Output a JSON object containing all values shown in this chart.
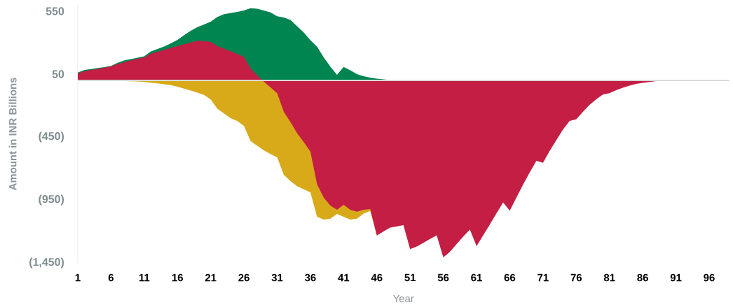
{
  "chart_data": {
    "type": "area",
    "xlabel": "Year",
    "ylabel": "Amount in INR Billions",
    "xlim": [
      1,
      99
    ],
    "ylim": [
      -1450,
      600
    ],
    "xticks": [
      1,
      6,
      11,
      16,
      21,
      26,
      31,
      36,
      41,
      46,
      51,
      56,
      61,
      66,
      71,
      76,
      81,
      86,
      91,
      96
    ],
    "yticks": [
      550,
      50,
      {
        "value": -450,
        "label": "(450)"
      },
      {
        "value": -950,
        "label": "(950)"
      },
      {
        "value": -1450,
        "label": "(1,450)"
      }
    ],
    "ref_lines": [
      {
        "axis": "y",
        "value": 0,
        "color": "#d9d9d9"
      }
    ],
    "series": [
      {
        "color": "#008450",
        "x": [
          1,
          2,
          3,
          4,
          5,
          6,
          7,
          8,
          9,
          10,
          11,
          12,
          13,
          14,
          15,
          16,
          17,
          18,
          19,
          20,
          21,
          22,
          23,
          24,
          25,
          26,
          27,
          28,
          29,
          30,
          31,
          32,
          33,
          34,
          35,
          36,
          37,
          38,
          39,
          40,
          41,
          42,
          43,
          44,
          45,
          46,
          47,
          48
        ],
        "values": [
          63,
          83,
          90,
          98,
          105,
          115,
          140,
          160,
          170,
          180,
          192,
          230,
          250,
          270,
          295,
          322,
          360,
          395,
          424,
          445,
          467,
          504,
          526,
          535,
          544,
          556,
          573,
          569,
          555,
          540,
          510,
          500,
          480,
          431,
          380,
          320,
          268,
          183,
          110,
          44,
          107,
          80,
          50,
          33,
          22,
          14,
          8,
          3
        ]
      },
      {
        "color": "#d8aa19",
        "x": [
          1,
          2,
          3,
          4,
          5,
          6,
          7,
          8,
          9,
          10,
          11,
          12,
          13,
          14,
          15,
          16,
          17,
          18,
          19,
          20,
          21,
          22,
          23,
          24,
          25,
          26,
          27,
          28,
          29,
          30,
          31,
          32,
          33,
          34,
          35,
          36,
          37,
          38,
          39,
          40,
          41,
          42,
          43,
          44,
          45,
          46
        ],
        "values": [
          0,
          -1,
          -1,
          -2,
          -3,
          -3,
          -4,
          -5,
          -7,
          -8,
          -12,
          -18,
          -24,
          -30,
          -37,
          -50,
          -65,
          -80,
          -97,
          -115,
          -152,
          -225,
          -262,
          -300,
          -322,
          -361,
          -482,
          -520,
          -556,
          -585,
          -611,
          -750,
          -800,
          -840,
          -865,
          -889,
          -1083,
          -1105,
          -1098,
          -1061,
          -1083,
          -1106,
          -1098,
          -1058,
          -1037,
          -1232
        ]
      },
      {
        "color": "#c41e45",
        "x": [
          1,
          2,
          3,
          4,
          5,
          6,
          7,
          8,
          9,
          10,
          11,
          12,
          13,
          14,
          15,
          16,
          17,
          18,
          19,
          20,
          21,
          22,
          23,
          24,
          25,
          26,
          27,
          28,
          29,
          30,
          31,
          32,
          33,
          34,
          35,
          36,
          37,
          38,
          39,
          40,
          41,
          42,
          43,
          44,
          45,
          46,
          47,
          48,
          49,
          50,
          51,
          52,
          53,
          54,
          55,
          56,
          57,
          58,
          59,
          60,
          61,
          62,
          63,
          64,
          65,
          66,
          67,
          68,
          69,
          70,
          71,
          72,
          73,
          74,
          75,
          76,
          77,
          78,
          79,
          80,
          81,
          82,
          83,
          84,
          85,
          86,
          87,
          88,
          89,
          90,
          91
        ],
        "values": [
          55,
          73,
          83,
          92,
          102,
          113,
          130,
          145,
          160,
          172,
          183,
          212,
          228,
          243,
          258,
          272,
          288,
          302,
          315,
          312,
          306,
          272,
          252,
          232,
          210,
          187,
          94,
          40,
          -10,
          -55,
          -102,
          -250,
          -330,
          -420,
          -490,
          -565,
          -825,
          -930,
          -995,
          -1028,
          -987,
          -1028,
          -1043,
          -1028,
          -1022,
          -1232,
          -1200,
          -1170,
          -1160,
          -1150,
          -1340,
          -1320,
          -1290,
          -1260,
          -1230,
          -1405,
          -1361,
          -1300,
          -1240,
          -1185,
          -1317,
          -1230,
          -1145,
          -1055,
          -969,
          -1035,
          -930,
          -828,
          -730,
          -639,
          -654,
          -560,
          -475,
          -390,
          -322,
          -308,
          -250,
          -195,
          -150,
          -113,
          -101,
          -78,
          -58,
          -41,
          -28,
          -19,
          -12,
          -6,
          -3,
          -1,
          0
        ]
      }
    ]
  }
}
